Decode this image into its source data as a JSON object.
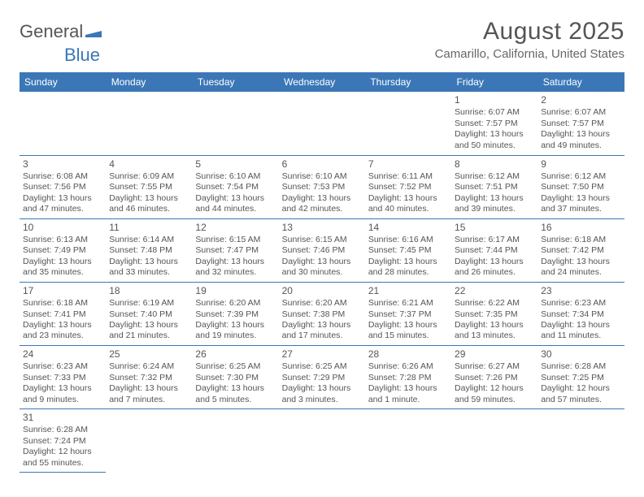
{
  "logo": {
    "text1": "General",
    "text2": "Blue",
    "color1": "#555555",
    "color2": "#3b77b6"
  },
  "title": "August 2025",
  "location": "Camarillo, California, United States",
  "header_bg": "#3b77b6",
  "header_fg": "#ffffff",
  "border_color": "#3b77b6",
  "daynames": [
    "Sunday",
    "Monday",
    "Tuesday",
    "Wednesday",
    "Thursday",
    "Friday",
    "Saturday"
  ],
  "weeks": [
    [
      null,
      null,
      null,
      null,
      null,
      {
        "n": "1",
        "sr": "Sunrise: 6:07 AM",
        "ss": "Sunset: 7:57 PM",
        "dl1": "Daylight: 13 hours",
        "dl2": "and 50 minutes."
      },
      {
        "n": "2",
        "sr": "Sunrise: 6:07 AM",
        "ss": "Sunset: 7:57 PM",
        "dl1": "Daylight: 13 hours",
        "dl2": "and 49 minutes."
      }
    ],
    [
      {
        "n": "3",
        "sr": "Sunrise: 6:08 AM",
        "ss": "Sunset: 7:56 PM",
        "dl1": "Daylight: 13 hours",
        "dl2": "and 47 minutes."
      },
      {
        "n": "4",
        "sr": "Sunrise: 6:09 AM",
        "ss": "Sunset: 7:55 PM",
        "dl1": "Daylight: 13 hours",
        "dl2": "and 46 minutes."
      },
      {
        "n": "5",
        "sr": "Sunrise: 6:10 AM",
        "ss": "Sunset: 7:54 PM",
        "dl1": "Daylight: 13 hours",
        "dl2": "and 44 minutes."
      },
      {
        "n": "6",
        "sr": "Sunrise: 6:10 AM",
        "ss": "Sunset: 7:53 PM",
        "dl1": "Daylight: 13 hours",
        "dl2": "and 42 minutes."
      },
      {
        "n": "7",
        "sr": "Sunrise: 6:11 AM",
        "ss": "Sunset: 7:52 PM",
        "dl1": "Daylight: 13 hours",
        "dl2": "and 40 minutes."
      },
      {
        "n": "8",
        "sr": "Sunrise: 6:12 AM",
        "ss": "Sunset: 7:51 PM",
        "dl1": "Daylight: 13 hours",
        "dl2": "and 39 minutes."
      },
      {
        "n": "9",
        "sr": "Sunrise: 6:12 AM",
        "ss": "Sunset: 7:50 PM",
        "dl1": "Daylight: 13 hours",
        "dl2": "and 37 minutes."
      }
    ],
    [
      {
        "n": "10",
        "sr": "Sunrise: 6:13 AM",
        "ss": "Sunset: 7:49 PM",
        "dl1": "Daylight: 13 hours",
        "dl2": "and 35 minutes."
      },
      {
        "n": "11",
        "sr": "Sunrise: 6:14 AM",
        "ss": "Sunset: 7:48 PM",
        "dl1": "Daylight: 13 hours",
        "dl2": "and 33 minutes."
      },
      {
        "n": "12",
        "sr": "Sunrise: 6:15 AM",
        "ss": "Sunset: 7:47 PM",
        "dl1": "Daylight: 13 hours",
        "dl2": "and 32 minutes."
      },
      {
        "n": "13",
        "sr": "Sunrise: 6:15 AM",
        "ss": "Sunset: 7:46 PM",
        "dl1": "Daylight: 13 hours",
        "dl2": "and 30 minutes."
      },
      {
        "n": "14",
        "sr": "Sunrise: 6:16 AM",
        "ss": "Sunset: 7:45 PM",
        "dl1": "Daylight: 13 hours",
        "dl2": "and 28 minutes."
      },
      {
        "n": "15",
        "sr": "Sunrise: 6:17 AM",
        "ss": "Sunset: 7:44 PM",
        "dl1": "Daylight: 13 hours",
        "dl2": "and 26 minutes."
      },
      {
        "n": "16",
        "sr": "Sunrise: 6:18 AM",
        "ss": "Sunset: 7:42 PM",
        "dl1": "Daylight: 13 hours",
        "dl2": "and 24 minutes."
      }
    ],
    [
      {
        "n": "17",
        "sr": "Sunrise: 6:18 AM",
        "ss": "Sunset: 7:41 PM",
        "dl1": "Daylight: 13 hours",
        "dl2": "and 23 minutes."
      },
      {
        "n": "18",
        "sr": "Sunrise: 6:19 AM",
        "ss": "Sunset: 7:40 PM",
        "dl1": "Daylight: 13 hours",
        "dl2": "and 21 minutes."
      },
      {
        "n": "19",
        "sr": "Sunrise: 6:20 AM",
        "ss": "Sunset: 7:39 PM",
        "dl1": "Daylight: 13 hours",
        "dl2": "and 19 minutes."
      },
      {
        "n": "20",
        "sr": "Sunrise: 6:20 AM",
        "ss": "Sunset: 7:38 PM",
        "dl1": "Daylight: 13 hours",
        "dl2": "and 17 minutes."
      },
      {
        "n": "21",
        "sr": "Sunrise: 6:21 AM",
        "ss": "Sunset: 7:37 PM",
        "dl1": "Daylight: 13 hours",
        "dl2": "and 15 minutes."
      },
      {
        "n": "22",
        "sr": "Sunrise: 6:22 AM",
        "ss": "Sunset: 7:35 PM",
        "dl1": "Daylight: 13 hours",
        "dl2": "and 13 minutes."
      },
      {
        "n": "23",
        "sr": "Sunrise: 6:23 AM",
        "ss": "Sunset: 7:34 PM",
        "dl1": "Daylight: 13 hours",
        "dl2": "and 11 minutes."
      }
    ],
    [
      {
        "n": "24",
        "sr": "Sunrise: 6:23 AM",
        "ss": "Sunset: 7:33 PM",
        "dl1": "Daylight: 13 hours",
        "dl2": "and 9 minutes."
      },
      {
        "n": "25",
        "sr": "Sunrise: 6:24 AM",
        "ss": "Sunset: 7:32 PM",
        "dl1": "Daylight: 13 hours",
        "dl2": "and 7 minutes."
      },
      {
        "n": "26",
        "sr": "Sunrise: 6:25 AM",
        "ss": "Sunset: 7:30 PM",
        "dl1": "Daylight: 13 hours",
        "dl2": "and 5 minutes."
      },
      {
        "n": "27",
        "sr": "Sunrise: 6:25 AM",
        "ss": "Sunset: 7:29 PM",
        "dl1": "Daylight: 13 hours",
        "dl2": "and 3 minutes."
      },
      {
        "n": "28",
        "sr": "Sunrise: 6:26 AM",
        "ss": "Sunset: 7:28 PM",
        "dl1": "Daylight: 13 hours",
        "dl2": "and 1 minute."
      },
      {
        "n": "29",
        "sr": "Sunrise: 6:27 AM",
        "ss": "Sunset: 7:26 PM",
        "dl1": "Daylight: 12 hours",
        "dl2": "and 59 minutes."
      },
      {
        "n": "30",
        "sr": "Sunrise: 6:28 AM",
        "ss": "Sunset: 7:25 PM",
        "dl1": "Daylight: 12 hours",
        "dl2": "and 57 minutes."
      }
    ],
    [
      {
        "n": "31",
        "sr": "Sunrise: 6:28 AM",
        "ss": "Sunset: 7:24 PM",
        "dl1": "Daylight: 12 hours",
        "dl2": "and 55 minutes."
      },
      null,
      null,
      null,
      null,
      null,
      null
    ]
  ]
}
